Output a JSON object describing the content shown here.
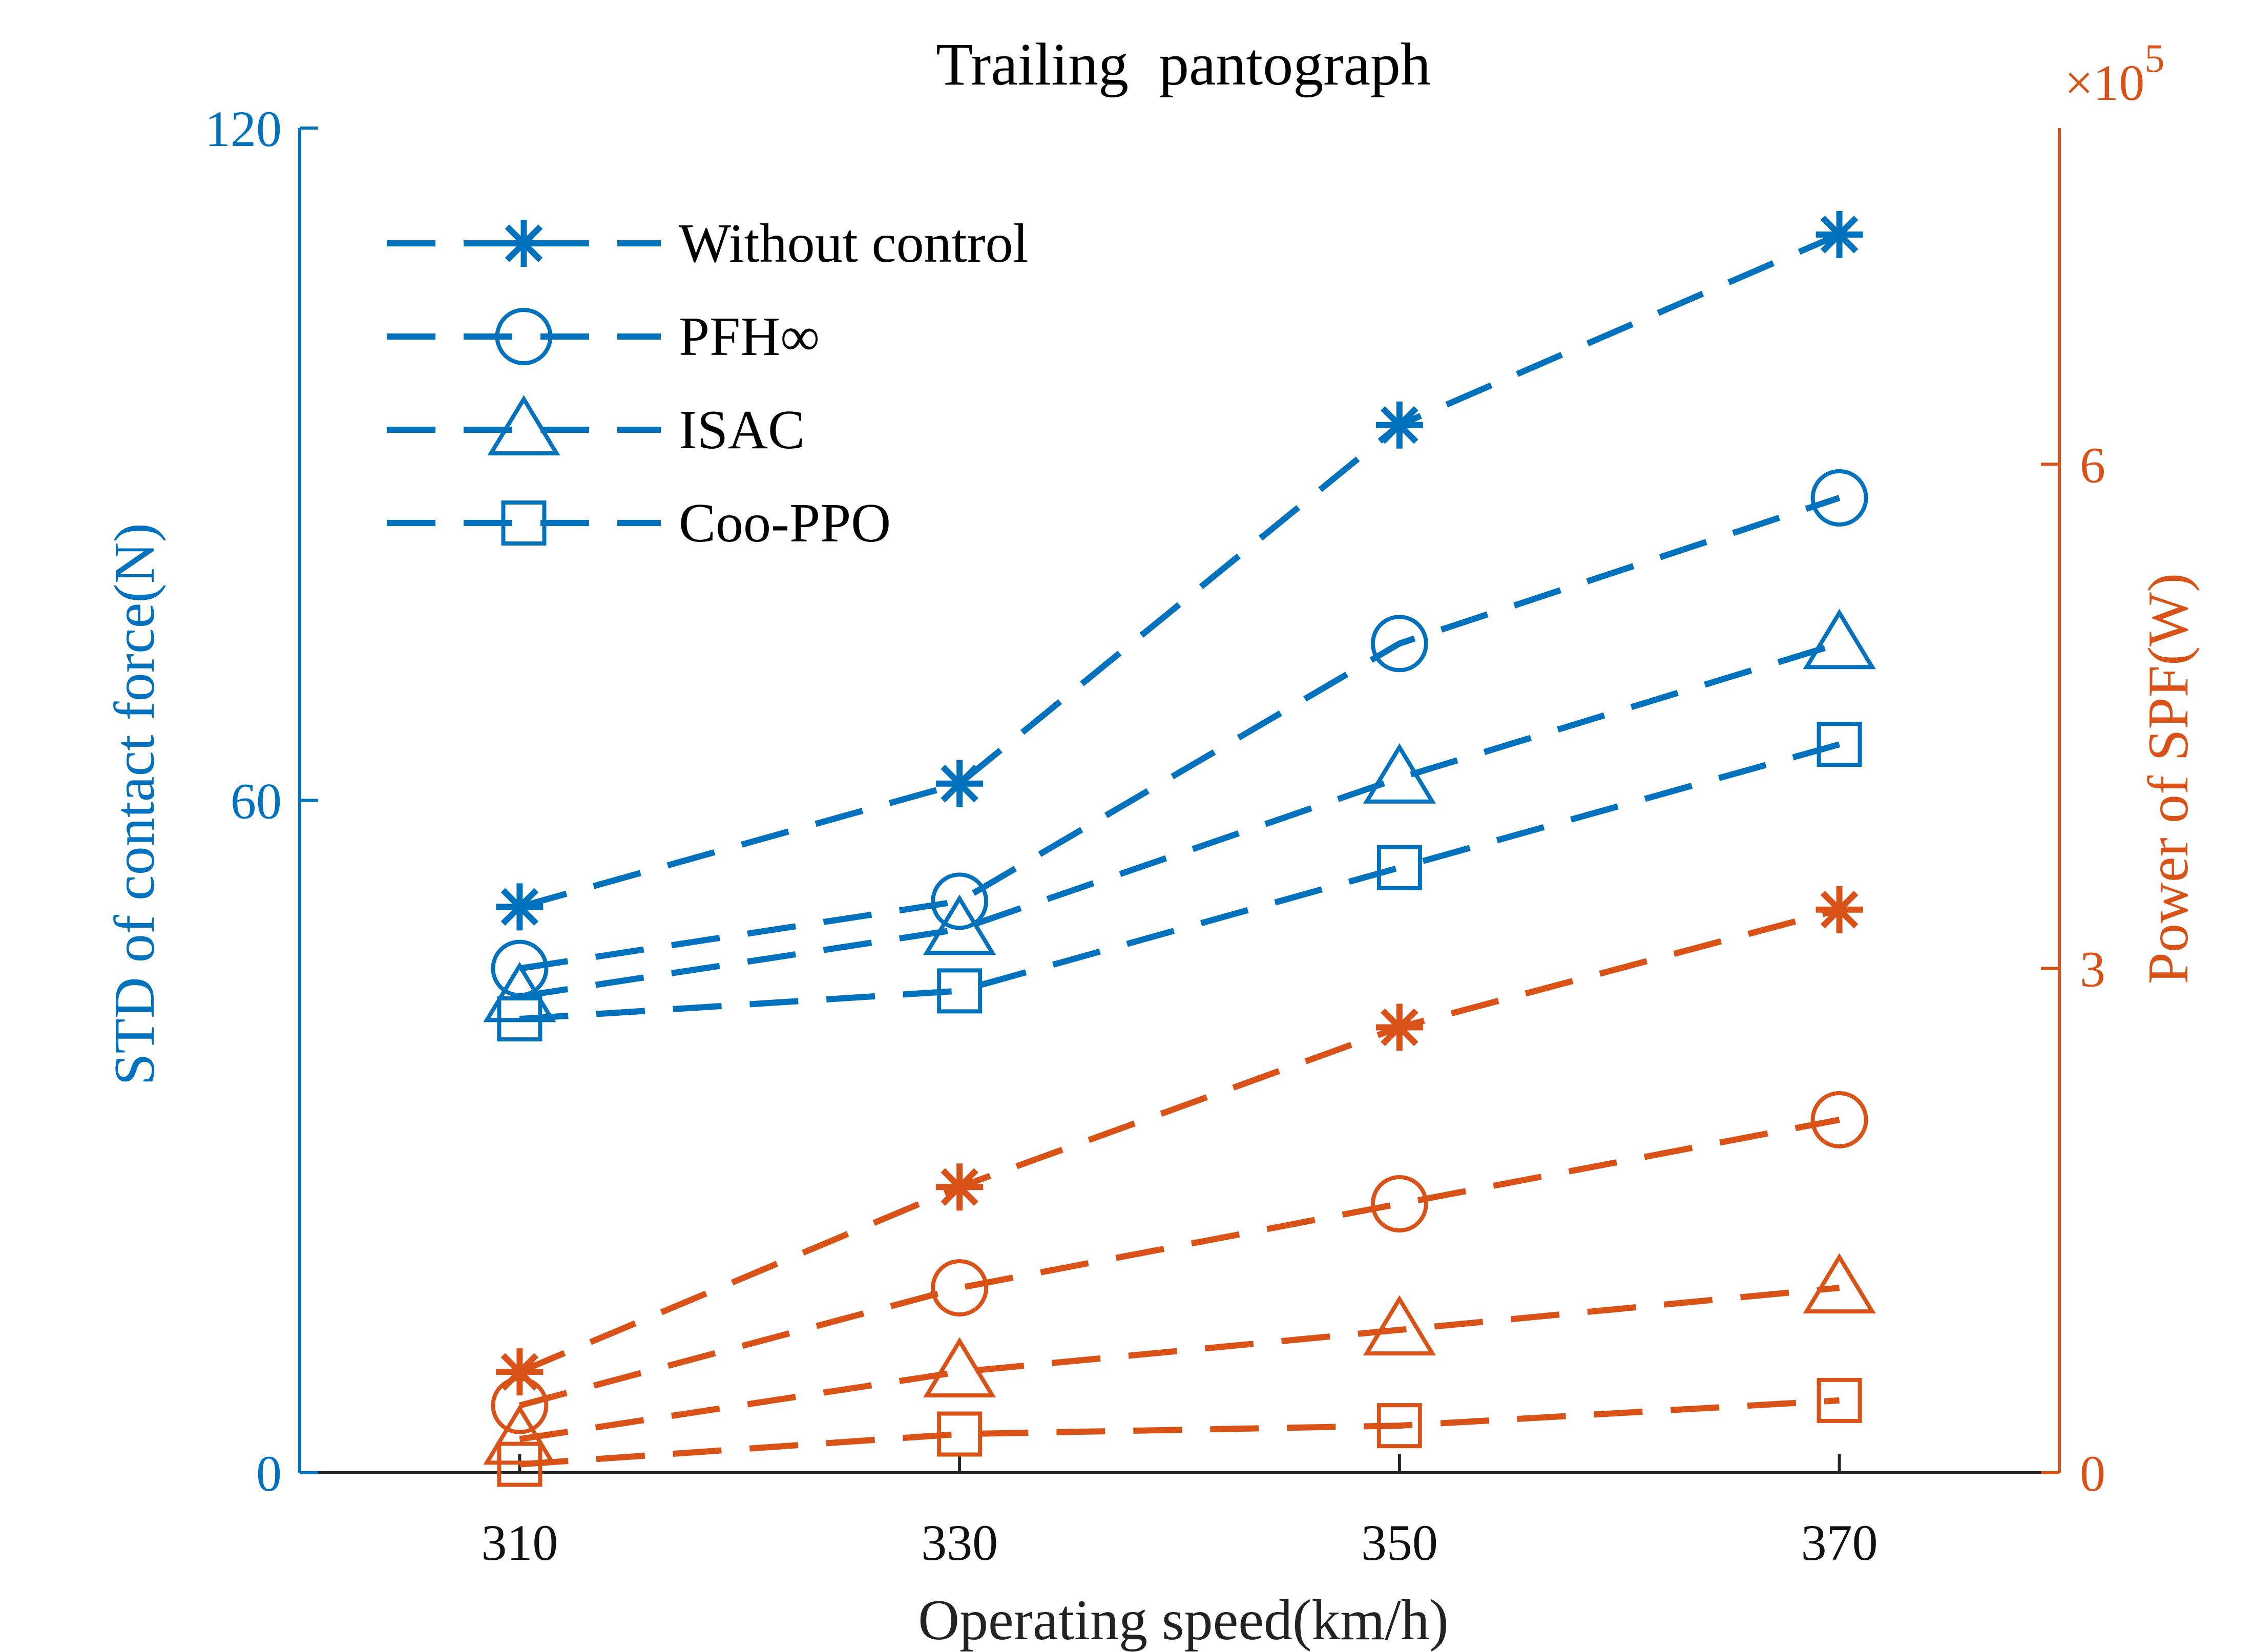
{
  "chart_data": {
    "type": "line",
    "title": "Trailing  pantograph",
    "xlabel": "Operating speed(km/h)",
    "ylabel_left": "STD of contact force(N)",
    "ylabel_right": "Power of SPF(W)",
    "right_multiplier": "×10",
    "right_multiplier_exp": "5",
    "x": [
      310,
      330,
      350,
      370
    ],
    "xlim": [
      300,
      380
    ],
    "xticks": [
      "310",
      "330",
      "350",
      "370"
    ],
    "ylim_left": [
      0,
      120
    ],
    "yticks_left": [
      "0",
      "60",
      "120"
    ],
    "ylim_right": [
      0,
      8
    ],
    "yticks_right": [
      "0",
      "3",
      "6"
    ],
    "legend_position": "top-left",
    "left_color": "#0072BD",
    "right_color": "#D95319",
    "series": [
      {
        "name": "Without control",
        "marker": "asterisk",
        "axis": "left",
        "values": [
          50.5,
          61.5,
          93.5,
          110.5
        ]
      },
      {
        "name": "PFH∞",
        "marker": "circle",
        "axis": "left",
        "values": [
          45,
          51,
          74,
          87
        ]
      },
      {
        "name": "ISAC",
        "marker": "triangle",
        "axis": "left",
        "values": [
          42.5,
          48.5,
          62,
          74
        ]
      },
      {
        "name": "Coo-PPO",
        "marker": "square",
        "axis": "left",
        "values": [
          40.5,
          43,
          54,
          65
        ]
      },
      {
        "marker": "asterisk",
        "axis": "right",
        "values": [
          0.6,
          1.7,
          2.65,
          3.35
        ]
      },
      {
        "marker": "circle",
        "axis": "right",
        "values": [
          0.4,
          1.1,
          1.6,
          2.1
        ]
      },
      {
        "marker": "triangle",
        "axis": "right",
        "values": [
          0.2,
          0.6,
          0.85,
          1.1
        ]
      },
      {
        "marker": "square",
        "axis": "right",
        "values": [
          0.05,
          0.23,
          0.28,
          0.43
        ]
      }
    ]
  }
}
